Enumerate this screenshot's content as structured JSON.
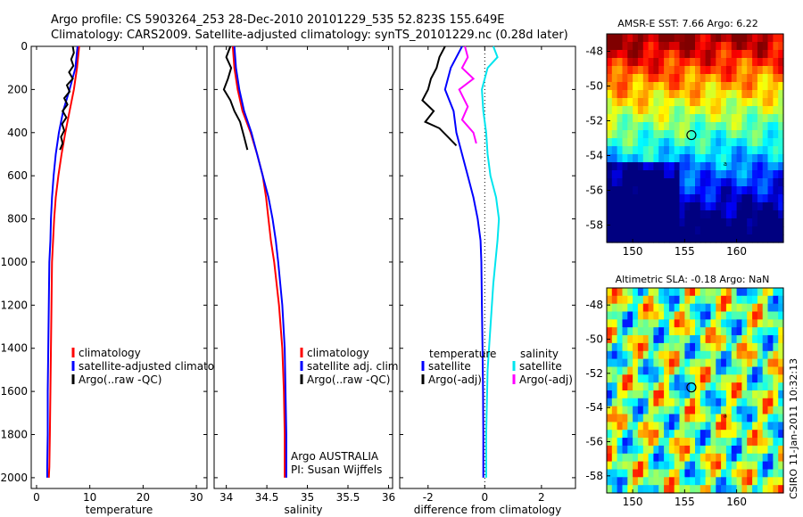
{
  "header": {
    "line1": "Argo profile: CS 5903264_253 28-Dec-2010 20101229_535 52.823S 155.649E",
    "line2": "Climatology: CARS2009. Satellite-adjusted climatology: synTS_20101229.nc (0.28d later)"
  },
  "credit": "CSIRO 11-Jan-2011 10:32:13",
  "colors": {
    "climatology": "#ff0000",
    "satellite": "#0000ff",
    "argo": "#000000",
    "sal_satellite": "#00e5ee",
    "sal_argo": "#ff00ff"
  },
  "chart_data": [
    {
      "type": "line",
      "id": "temperature",
      "xlabel": "temperature",
      "ylabel": "",
      "xlim": [
        -1,
        32
      ],
      "ylim": [
        0,
        2050
      ],
      "y_reversed": true,
      "xticks": [
        0,
        10,
        20,
        30
      ],
      "yticks": [
        0,
        200,
        400,
        600,
        800,
        1000,
        1200,
        1400,
        1600,
        1800,
        2000
      ],
      "legend": [
        "climatology",
        "satellite-adjusted climatology",
        "Argo(..raw -QC)"
      ],
      "series": [
        {
          "name": "climatology",
          "color": "#ff0000",
          "x": [
            8.0,
            7.6,
            7.0,
            6.2,
            5.4,
            4.7,
            4.1,
            3.6,
            3.3,
            3.1,
            2.9,
            2.8,
            2.7,
            2.6,
            2.5,
            2.4,
            2.3
          ],
          "y": [
            0,
            100,
            200,
            300,
            400,
            500,
            600,
            700,
            800,
            900,
            1000,
            1200,
            1400,
            1600,
            1800,
            1950,
            2000
          ]
        },
        {
          "name": "satellite-adjusted climatology",
          "color": "#0000ff",
          "x": [
            7.7,
            7.3,
            6.2,
            5.0,
            4.2,
            3.6,
            3.2,
            2.9,
            2.7,
            2.6,
            2.4,
            2.3,
            2.2,
            2.1,
            2.1,
            2.0,
            2.0
          ],
          "y": [
            0,
            100,
            200,
            300,
            400,
            500,
            600,
            700,
            800,
            900,
            1000,
            1200,
            1400,
            1600,
            1800,
            1950,
            2000
          ]
        },
        {
          "name": "Argo(..raw -QC)",
          "color": "#000000",
          "x": [
            6.8,
            7.0,
            6.5,
            6.9,
            6.1,
            6.8,
            5.7,
            6.2,
            5.2,
            5.8,
            4.9,
            5.6,
            4.8,
            5.2,
            4.6,
            4.9,
            4.4
          ],
          "y": [
            0,
            30,
            60,
            90,
            120,
            150,
            180,
            210,
            240,
            270,
            300,
            330,
            360,
            390,
            420,
            450,
            480
          ]
        }
      ]
    },
    {
      "type": "line",
      "id": "salinity",
      "xlabel": "salinity",
      "ylabel": "",
      "xlim": [
        33.85,
        36.05
      ],
      "ylim": [
        0,
        2050
      ],
      "y_reversed": true,
      "xticks": [
        34,
        34.5,
        35,
        35.5,
        36
      ],
      "yticks": [
        0,
        200,
        400,
        600,
        800,
        1000,
        1200,
        1400,
        1600,
        1800,
        2000
      ],
      "legend": [
        "climatology",
        "satellite adj. clim.",
        "Argo(..raw -QC)"
      ],
      "annotations": [
        "Argo AUSTRALIA",
        "PI: Susan Wijffels"
      ],
      "series": [
        {
          "name": "climatology",
          "color": "#ff0000",
          "x": [
            34.08,
            34.1,
            34.14,
            34.2,
            34.3,
            34.38,
            34.45,
            34.49,
            34.52,
            34.55,
            34.59,
            34.65,
            34.69,
            34.71,
            34.72,
            34.72
          ],
          "y": [
            0,
            100,
            200,
            300,
            400,
            500,
            600,
            700,
            800,
            900,
            1000,
            1200,
            1400,
            1600,
            1800,
            2000
          ]
        },
        {
          "name": "satellite adj. clim.",
          "color": "#0000ff",
          "x": [
            34.1,
            34.12,
            34.16,
            34.22,
            34.31,
            34.38,
            34.45,
            34.52,
            34.57,
            34.61,
            34.64,
            34.69,
            34.72,
            34.73,
            34.74,
            34.74
          ],
          "y": [
            0,
            100,
            200,
            300,
            400,
            500,
            600,
            700,
            800,
            900,
            1000,
            1200,
            1400,
            1600,
            1800,
            2000
          ]
        },
        {
          "name": "Argo(..raw -QC)",
          "color": "#000000",
          "x": [
            34.05,
            34.0,
            34.06,
            34.02,
            33.97,
            34.05,
            34.1,
            34.17,
            34.22,
            34.26
          ],
          "y": [
            0,
            50,
            100,
            150,
            200,
            250,
            300,
            350,
            420,
            480
          ]
        }
      ]
    },
    {
      "type": "line",
      "id": "difference",
      "xlabel": "difference from climatology",
      "ylabel": "",
      "xlim": [
        -3,
        3.2
      ],
      "ylim": [
        0,
        2050
      ],
      "y_reversed": true,
      "xticks": [
        -2,
        0,
        2
      ],
      "yticks": [
        0,
        200,
        400,
        600,
        800,
        1000,
        1200,
        1400,
        1600,
        1800,
        2000
      ],
      "legend_titles": [
        "temperature",
        "salinity"
      ],
      "legend": [
        "satellite",
        "Argo(-adj)",
        "satellite",
        "Argo(-adj)"
      ],
      "series": [
        {
          "name": "satellite",
          "color": "#0000ff",
          "x": [
            -0.8,
            -1.2,
            -1.4,
            -1.1,
            -1.0,
            -0.8,
            -0.6,
            -0.4,
            -0.25,
            -0.15,
            -0.12,
            -0.1,
            -0.08,
            -0.06,
            -0.05,
            -0.05
          ],
          "y": [
            0,
            100,
            200,
            300,
            400,
            500,
            600,
            700,
            800,
            900,
            1000,
            1200,
            1400,
            1600,
            1800,
            2000
          ]
        },
        {
          "name": "Argo(-adj)",
          "color": "#000000",
          "x": [
            -1.4,
            -1.6,
            -1.7,
            -1.9,
            -2.0,
            -2.2,
            -1.8,
            -2.1,
            -1.6,
            -1.3,
            -1.0
          ],
          "y": [
            0,
            50,
            100,
            150,
            200,
            250,
            300,
            350,
            380,
            420,
            460
          ]
        },
        {
          "name": "satellite",
          "color": "#00e5ee",
          "x": [
            0.3,
            0.45,
            0.1,
            -0.1,
            -0.05,
            0.05,
            0.1,
            0.2,
            0.4,
            0.5,
            0.45,
            0.3,
            0.2,
            0.1,
            0.05,
            0.05
          ],
          "y": [
            0,
            50,
            100,
            200,
            300,
            400,
            500,
            600,
            700,
            800,
            900,
            1100,
            1300,
            1500,
            1800,
            2000
          ]
        },
        {
          "name": "Argo(-adj)",
          "color": "#ff00ff",
          "x": [
            -0.7,
            -0.6,
            -0.8,
            -0.4,
            -0.9,
            -0.6,
            -0.8,
            -0.4,
            -0.3
          ],
          "y": [
            0,
            50,
            100,
            150,
            200,
            280,
            340,
            400,
            450
          ]
        }
      ]
    },
    {
      "type": "heatmap",
      "id": "sst_map",
      "title": "AMSR-E SST: 7.66 Argo: 6.22",
      "xlim": [
        147.5,
        164.5
      ],
      "ylim": [
        -59,
        -47
      ],
      "xticks": [
        150,
        155,
        160
      ],
      "yticks": [
        -48,
        -50,
        -52,
        -54,
        -56,
        -58
      ],
      "marker": {
        "lon": 155.649,
        "lat": -52.823
      },
      "float_label": "a"
    },
    {
      "type": "heatmap",
      "id": "sla_map",
      "title": "Altimetric SLA: -0.18 Argo: NaN",
      "xlim": [
        147.5,
        164.5
      ],
      "ylim": [
        -59,
        -47
      ],
      "xticks": [
        150,
        155,
        160
      ],
      "yticks": [
        -48,
        -50,
        -52,
        -54,
        -56,
        -58
      ],
      "marker": {
        "lon": 155.649,
        "lat": -52.823
      },
      "float_label": "a"
    }
  ]
}
